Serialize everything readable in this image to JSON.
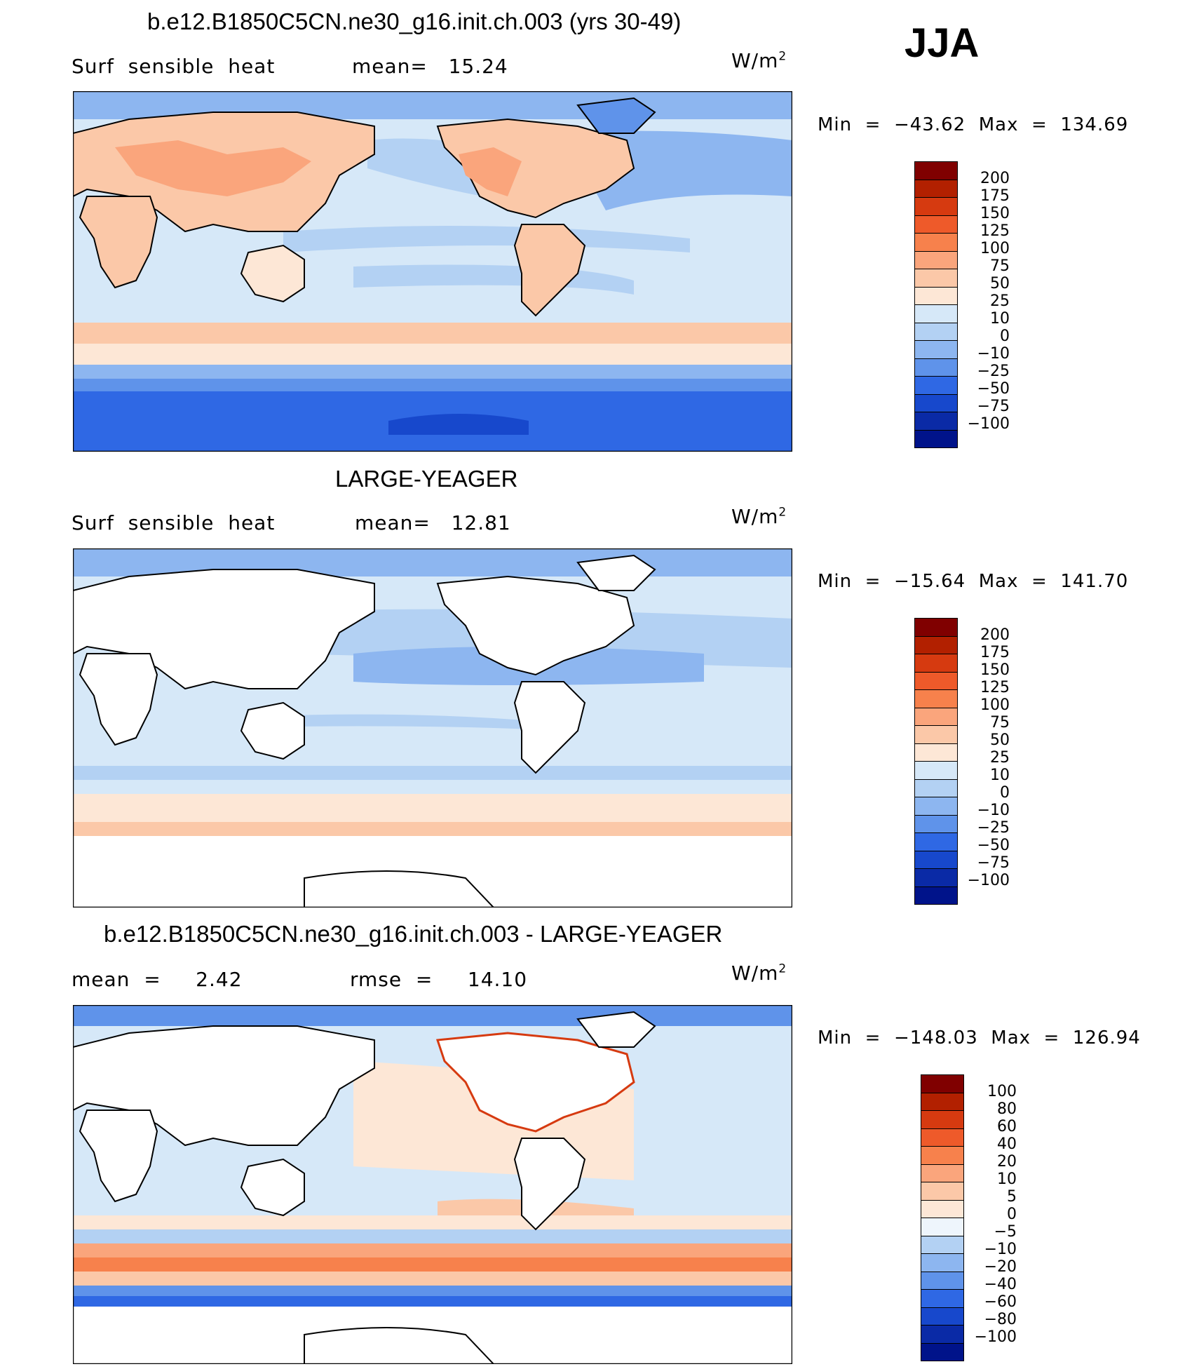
{
  "season": "JJA",
  "panels": [
    {
      "title": "b.e12.B1850C5CN.ne30_g16.init.ch.003 (yrs 30-49)",
      "left_label": "Surf  sensible  heat",
      "mid_label": "mean=   15.24",
      "unit": "W/m",
      "unit_exp": "2",
      "minmax": "Min  =  −43.62  Max  =  134.69",
      "colorbar_labels": [
        "200",
        "175",
        "150",
        "125",
        "100",
        "75",
        "50",
        "25",
        "10",
        "0",
        "−10",
        "−25",
        "−50",
        "−75",
        "−100"
      ],
      "colorbar_colors": [
        "#800000",
        "#b22000",
        "#d63a10",
        "#ee5a2a",
        "#f7814c",
        "#faa57c",
        "#fbc8a8",
        "#fde7d6",
        "#d6e8f8",
        "#b3d1f3",
        "#8db6f0",
        "#5f93ea",
        "#2f68e4",
        "#1748cc",
        "#0a2aa6",
        "#00138a"
      ],
      "land_fill": "field"
    },
    {
      "title": "LARGE-YEAGER",
      "left_label": "Surf  sensible  heat",
      "mid_label": "mean=   12.81",
      "unit": "W/m",
      "unit_exp": "2",
      "minmax": "Min  =  −15.64  Max  =  141.70",
      "colorbar_labels": [
        "200",
        "175",
        "150",
        "125",
        "100",
        "75",
        "50",
        "25",
        "10",
        "0",
        "−10",
        "−25",
        "−50",
        "−75",
        "−100"
      ],
      "colorbar_colors": [
        "#800000",
        "#b22000",
        "#d63a10",
        "#ee5a2a",
        "#f7814c",
        "#faa57c",
        "#fbc8a8",
        "#fde7d6",
        "#d6e8f8",
        "#b3d1f3",
        "#8db6f0",
        "#5f93ea",
        "#2f68e4",
        "#1748cc",
        "#0a2aa6",
        "#00138a"
      ],
      "land_fill": "white"
    },
    {
      "title": "b.e12.B1850C5CN.ne30_g16.init.ch.003 - LARGE-YEAGER",
      "left_label": "mean  =     2.42",
      "mid_label": "rmse  =     14.10",
      "unit": "W/m",
      "unit_exp": "2",
      "minmax": "Min  =  −148.03  Max  =  126.94",
      "colorbar_labels": [
        "100",
        "80",
        "60",
        "40",
        "20",
        "10",
        "5",
        "0",
        "−5",
        "−10",
        "−20",
        "−40",
        "−60",
        "−80",
        "−100"
      ],
      "colorbar_colors": [
        "#800000",
        "#b22000",
        "#d63a10",
        "#ee5a2a",
        "#f7814c",
        "#faa57c",
        "#fbc8a8",
        "#fde7d6",
        "#eef5fc",
        "#b3d1f3",
        "#8db6f0",
        "#5f93ea",
        "#2f68e4",
        "#1748cc",
        "#0a2aa6",
        "#00138a"
      ],
      "land_fill": "white"
    }
  ]
}
